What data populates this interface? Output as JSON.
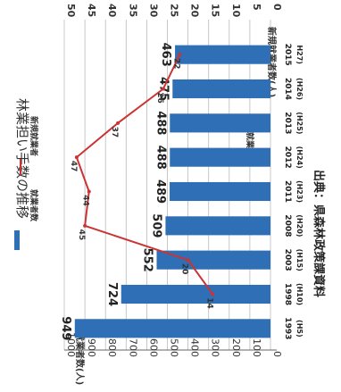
{
  "chart_data": {
    "type": "bar",
    "title": "林業担い手数の推移",
    "source": "出典：県森林政策課資料",
    "categories": [
      "1993",
      "1998",
      "2003",
      "2008",
      "2011",
      "2012",
      "2013",
      "2014",
      "2015"
    ],
    "category_sublabels": [
      "(H5)",
      "(H10)",
      "(H15)",
      "(H20)",
      "(H23)",
      "(H24)",
      "(H25)",
      "(H26)",
      "H27)"
    ],
    "left_axis": {
      "label": "就業者数(人)",
      "ylim": [
        0,
        1000
      ],
      "ticks": [
        0,
        100,
        200,
        300,
        400,
        500,
        600,
        700,
        800,
        900,
        1000
      ]
    },
    "right_axis": {
      "label": "新規就業者数(人)",
      "ylim": [
        0,
        50
      ],
      "ticks": [
        0,
        5,
        10,
        15,
        20,
        25,
        30,
        35,
        40,
        45,
        50
      ]
    },
    "series": [
      {
        "name": "就業者数",
        "type": "bar",
        "axis": "left",
        "color": "#2e6fb5",
        "values": [
          949,
          724,
          552,
          509,
          489,
          488,
          488,
          475,
          463
        ]
      },
      {
        "name": "新規就業者",
        "type": "line",
        "axis": "right",
        "color": "#cc3333",
        "values": [
          null,
          14,
          20,
          45,
          44,
          47,
          37,
          26,
          22
        ]
      }
    ],
    "right_legend_label": "新規就業者数",
    "grid": true
  }
}
